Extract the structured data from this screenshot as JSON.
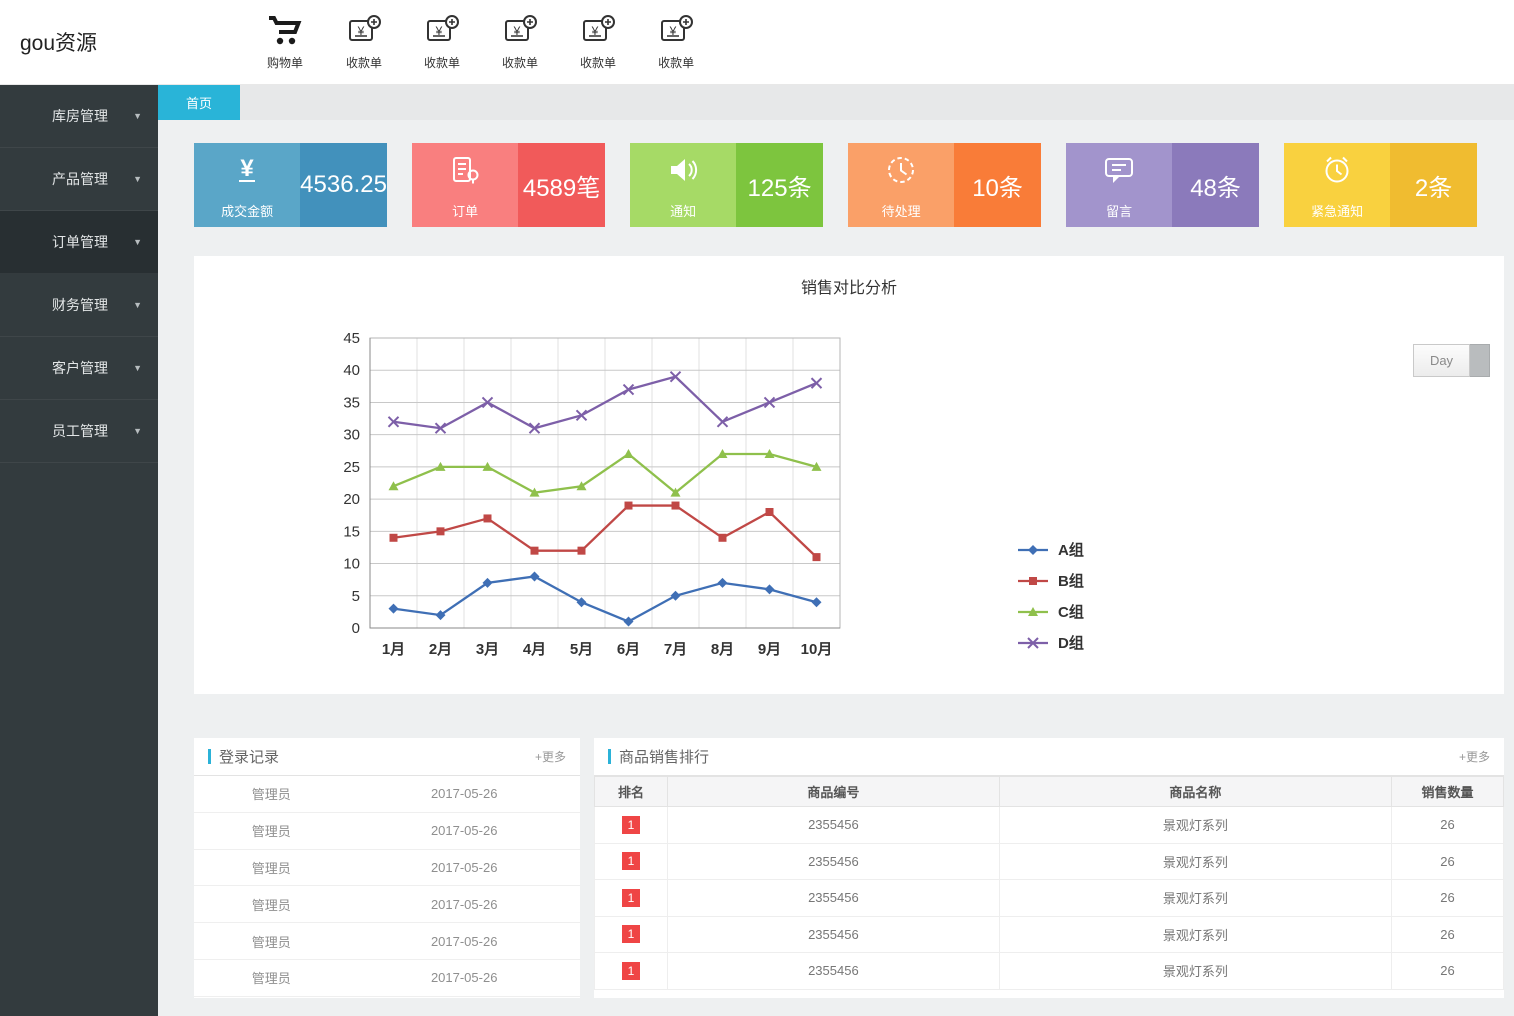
{
  "app": {
    "logo": "gou资源"
  },
  "topbar": {
    "items": [
      {
        "label": "购物单",
        "icon": "cart-icon"
      },
      {
        "label": "收款单",
        "icon": "receipt-icon"
      },
      {
        "label": "收款单",
        "icon": "receipt-icon"
      },
      {
        "label": "收款单",
        "icon": "receipt-icon"
      },
      {
        "label": "收款单",
        "icon": "receipt-icon"
      },
      {
        "label": "收款单",
        "icon": "receipt-icon"
      }
    ]
  },
  "sidebar": {
    "items": [
      {
        "label": "库房管理",
        "active": false
      },
      {
        "label": "产品管理",
        "active": false
      },
      {
        "label": "订单管理",
        "active": true
      },
      {
        "label": "财务管理",
        "active": false
      },
      {
        "label": "客户管理",
        "active": false
      },
      {
        "label": "员工管理",
        "active": false
      }
    ]
  },
  "tabs": {
    "active": "首页"
  },
  "stat_cards": [
    {
      "label": "成交金额",
      "value": "4536.25",
      "icon": "yen-icon",
      "color_left": "#5aa6c8",
      "color_right": "#4291bc"
    },
    {
      "label": "订单",
      "value": "4589笔",
      "icon": "order-icon",
      "color_left": "#f97f7f",
      "color_right": "#f15a5a"
    },
    {
      "label": "通知",
      "value": "125条",
      "icon": "speaker-icon",
      "color_left": "#a6da66",
      "color_right": "#7dc53e"
    },
    {
      "label": "待处理",
      "value": "10条",
      "icon": "clock-icon",
      "color_left": "#faa068",
      "color_right": "#f97c38"
    },
    {
      "label": "留言",
      "value": "48条",
      "icon": "message-icon",
      "color_left": "#a294cc",
      "color_right": "#8b7abb"
    },
    {
      "label": "紧急通知",
      "value": "2条",
      "icon": "alarm-icon",
      "color_left": "#f9d13f",
      "color_right": "#f0bc30"
    }
  ],
  "chart_panel": {
    "title": "销售对比分析",
    "day_button": "Day"
  },
  "chart_data": {
    "type": "line",
    "title": "销售对比分析",
    "x": [
      "1月",
      "2月",
      "3月",
      "4月",
      "5月",
      "6月",
      "7月",
      "8月",
      "9月",
      "10月"
    ],
    "series": [
      {
        "name": "A组",
        "color": "#3f6fb5",
        "marker": "diamond",
        "values": [
          3,
          2,
          7,
          8,
          4,
          1,
          5,
          7,
          6,
          4
        ]
      },
      {
        "name": "B组",
        "color": "#c04846",
        "marker": "square",
        "values": [
          14,
          15,
          17,
          12,
          12,
          19,
          19,
          14,
          18,
          11
        ]
      },
      {
        "name": "C组",
        "color": "#8fc04c",
        "marker": "triangle",
        "values": [
          22,
          25,
          25,
          21,
          22,
          27,
          21,
          27,
          27,
          25
        ]
      },
      {
        "name": "D组",
        "color": "#7d5fa8",
        "marker": "x",
        "values": [
          32,
          31,
          35,
          31,
          33,
          37,
          39,
          32,
          35,
          38
        ]
      }
    ],
    "ylim": [
      0,
      45
    ],
    "ytick_step": 5,
    "grid": true,
    "legend_position": "right"
  },
  "login_panel": {
    "title": "登录记录",
    "more_label": "+更多",
    "rows": [
      {
        "user": "管理员",
        "date": "2017-05-26"
      },
      {
        "user": "管理员",
        "date": "2017-05-26"
      },
      {
        "user": "管理员",
        "date": "2017-05-26"
      },
      {
        "user": "管理员",
        "date": "2017-05-26"
      },
      {
        "user": "管理员",
        "date": "2017-05-26"
      },
      {
        "user": "管理员",
        "date": "2017-05-26"
      }
    ]
  },
  "sales_panel": {
    "title": "商品销售排行",
    "more_label": "+更多",
    "headers": [
      "排名",
      "商品编号",
      "商品名称",
      "销售数量"
    ],
    "rows": [
      {
        "rank": "1",
        "code": "2355456",
        "name": "景观灯系列",
        "qty": "26"
      },
      {
        "rank": "1",
        "code": "2355456",
        "name": "景观灯系列",
        "qty": "26"
      },
      {
        "rank": "1",
        "code": "2355456",
        "name": "景观灯系列",
        "qty": "26"
      },
      {
        "rank": "1",
        "code": "2355456",
        "name": "景观灯系列",
        "qty": "26"
      },
      {
        "rank": "1",
        "code": "2355456",
        "name": "景观灯系列",
        "qty": "26"
      }
    ]
  },
  "colors": {
    "accent_blue": "#29b4d8",
    "rank_badge_red": "#ef4545",
    "sidebar_bg": "#333b3e"
  }
}
